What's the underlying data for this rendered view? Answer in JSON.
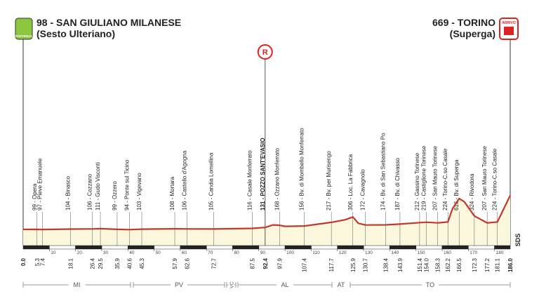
{
  "start": {
    "title": "98 - SAN GIULIANO MILANESE",
    "subtitle": "(Sesto Ulteriano)",
    "badge": "PARTENZA",
    "km": {
      "value": 0,
      "label": "0.0"
    }
  },
  "finish": {
    "title": "669 - TORINO",
    "subtitle": "(Superga)",
    "badge": "ARRIVO",
    "km": {
      "value": 186,
      "label": "186.0"
    }
  },
  "chart_data": {
    "type": "area",
    "profile": {
      "x": [
        0,
        5.3,
        7.4,
        18.1,
        26.4,
        29.5,
        35.9,
        40.6,
        45.3,
        57.9,
        62.6,
        72.7,
        87.5,
        92.4,
        95.5,
        97.9,
        100,
        107.4,
        117.7,
        123,
        125.9,
        128,
        130.7,
        138.4,
        143.9,
        151.4,
        154,
        158.3,
        162.2,
        164,
        166.5,
        168.5,
        172.3,
        177.2,
        181.1,
        186
      ],
      "elevation": [
        98,
        99,
        97,
        104,
        106,
        111,
        99,
        94,
        103,
        108,
        106,
        105,
        116,
        131,
        175,
        168,
        150,
        156,
        217,
        260,
        306,
        200,
        172,
        174,
        187,
        212,
        219,
        207,
        224,
        450,
        616,
        560,
        324,
        207,
        224,
        669
      ],
      "color": "#c0392b",
      "fill": "#fbf7dc"
    },
    "xlim": [
      0,
      186
    ],
    "xticks": [
      10,
      20,
      30,
      40,
      50,
      60,
      70,
      80,
      90,
      100,
      110,
      120,
      130,
      140,
      150,
      160,
      170,
      180
    ],
    "waypoints": [
      {
        "km": 5.3,
        "label": "99 - Opera"
      },
      {
        "km": 7.4,
        "label": "97 - Pieve Emanuele"
      },
      {
        "km": 18.1,
        "label": "104 - Binasco"
      },
      {
        "km": 26.4,
        "label": "106 - Cozzano"
      },
      {
        "km": 29.5,
        "label": "111 - Gudo Visconti"
      },
      {
        "km": 35.9,
        "label": "99 - Ozzero"
      },
      {
        "km": 40.6,
        "label": "94 - Ponte sul Ticino"
      },
      {
        "km": 45.3,
        "label": "103 - Vigevano"
      },
      {
        "km": 57.9,
        "label": "108 - Mortara"
      },
      {
        "km": 62.6,
        "label": "106 - Castello d'Agogna"
      },
      {
        "km": 72.7,
        "label": "105 - Candia Lomellina"
      },
      {
        "km": 87.5,
        "label": "116 - Casale Monferrato"
      },
      {
        "km": 92.4,
        "label": "131 - POZZO SANT'EVASIO",
        "highlight": true,
        "marker": "R"
      },
      {
        "km": 97.9,
        "label": "168 - Ozzano Monferrato"
      },
      {
        "km": 107.4,
        "label": "156 - Bv. di Mombello Monferrato"
      },
      {
        "km": 117.7,
        "label": "217 - Bv. per Murisengo"
      },
      {
        "km": 125.9,
        "label": "306 - Loc. La Fabbrica"
      },
      {
        "km": 130.7,
        "label": "172 - Cavagnolo"
      },
      {
        "km": 138.4,
        "label": "174 - Bv. di San Sebastiano Po"
      },
      {
        "km": 143.9,
        "label": "187 - Bv. di Chivasso"
      },
      {
        "km": 151.4,
        "label": "212 - Gassino Torinese"
      },
      {
        "km": {
          "value": 154,
          "label": "154.0"
        },
        "label": "219 - Castiglione Torinese"
      },
      {
        "km": 158.3,
        "label": "207 - San Mauro Torinese"
      },
      {
        "km": 162.2,
        "label": "224 - Torino-C.so Casale"
      },
      {
        "km": 166.5,
        "label": "616 - Bv. di Superga"
      },
      {
        "km": 172.3,
        "label": "324 - Rivodora"
      },
      {
        "km": 177.2,
        "label": "207 - San Mauro Torinese"
      },
      {
        "km": 181.1,
        "label": "224 - Torino-C.so Casale"
      }
    ],
    "provinces": [
      "MI",
      "PV",
      "VC",
      "AL",
      "AT",
      "TO"
    ],
    "credit": "SDS"
  }
}
